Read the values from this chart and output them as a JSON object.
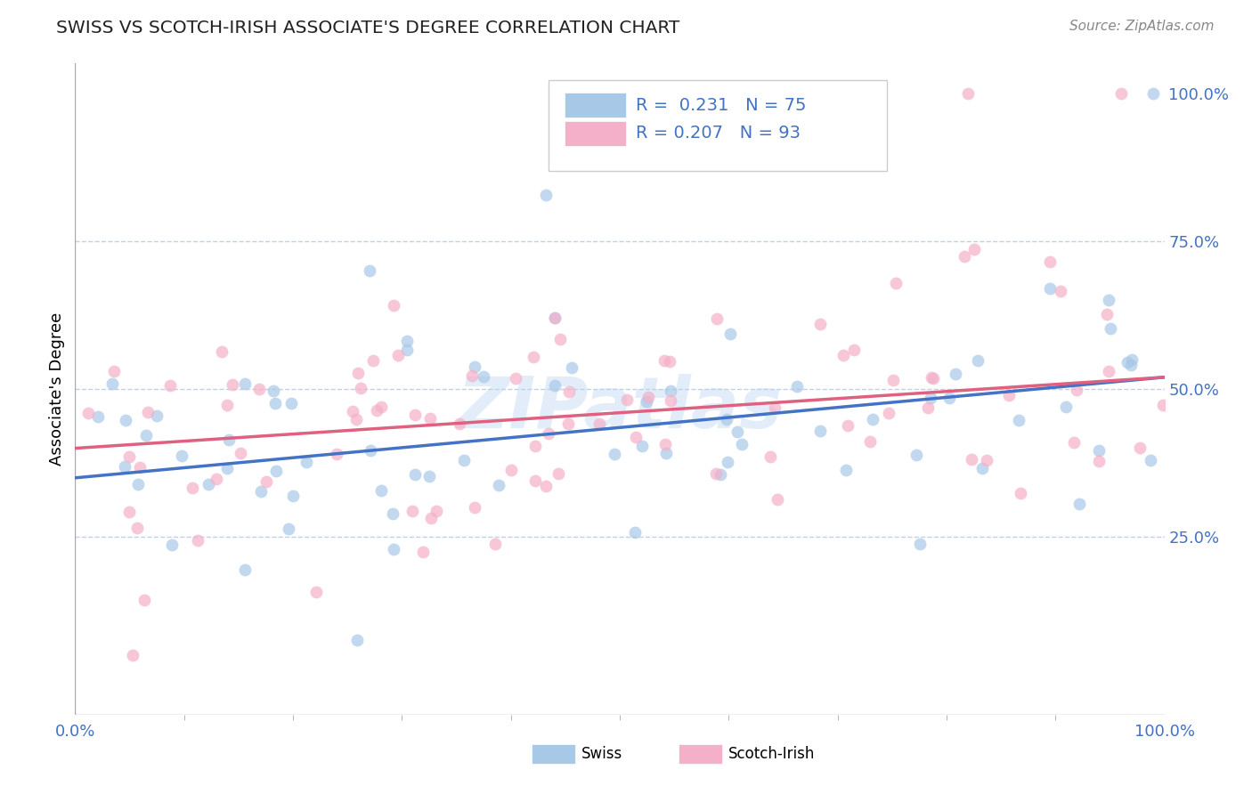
{
  "title": "SWISS VS SCOTCH-IRISH ASSOCIATE'S DEGREE CORRELATION CHART",
  "source_text": "Source: ZipAtlas.com",
  "ylabel": "Associate's Degree",
  "xlim": [
    0,
    1
  ],
  "ylim": [
    0,
    1
  ],
  "xtick_labels": [
    "0.0%",
    "100.0%"
  ],
  "ytick_labels": [
    "25.0%",
    "50.0%",
    "75.0%",
    "100.0%"
  ],
  "ytick_positions": [
    0.25,
    0.5,
    0.75,
    1.0
  ],
  "swiss_color": "#a8c8e8",
  "scotch_color": "#f4b0c8",
  "swiss_line_color": "#4472c4",
  "scotch_line_color": "#e06080",
  "label_color": "#4472c4",
  "swiss_r": 0.231,
  "scotch_r": 0.207,
  "swiss_n": 75,
  "scotch_n": 93,
  "watermark": "ZIPatlas",
  "background_color": "#ffffff",
  "grid_color": "#c0d0e8",
  "swiss_line_start_y": 0.35,
  "swiss_line_end_y": 0.52,
  "scotch_line_start_y": 0.4,
  "scotch_line_end_y": 0.52
}
